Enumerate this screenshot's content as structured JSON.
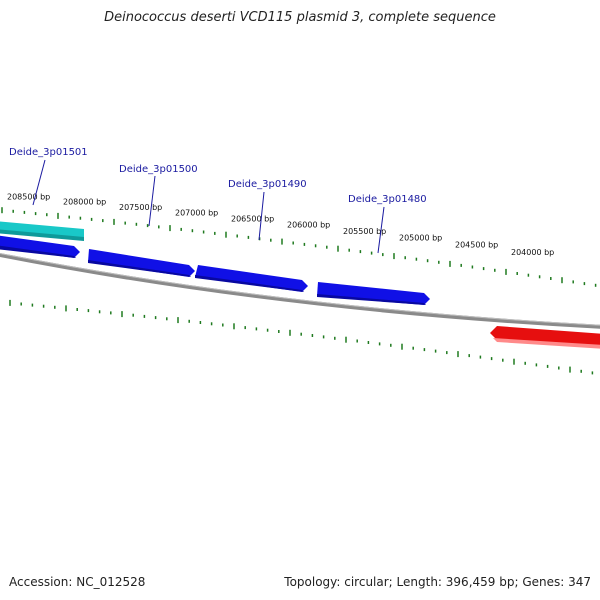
{
  "title": "Deinococcus deserti VCD115 plasmid 3, complete sequence",
  "footer": {
    "accession": "Accession: NC_012528",
    "summary": "Topology: circular; Length: 396,459 bp; Genes: 347"
  },
  "ticks": [
    "208500 bp",
    "208000 bp",
    "207500 bp",
    "207000 bp",
    "206500 bp",
    "206000 bp",
    "205500 bp",
    "205000 bp",
    "204500 bp",
    "204000 bp"
  ],
  "gene_labels": [
    "Deide_3p01501",
    "Deide_3p01500",
    "Deide_3p01490",
    "Deide_3p01480"
  ],
  "colors": {
    "backbone": "#8a8a8a",
    "forward_gene": "#1010e6",
    "cyan_gene": "#19c8c8",
    "red_gene": "#e60f0f",
    "tick": "#1f7a1f",
    "label": "#1a1aa0"
  }
}
